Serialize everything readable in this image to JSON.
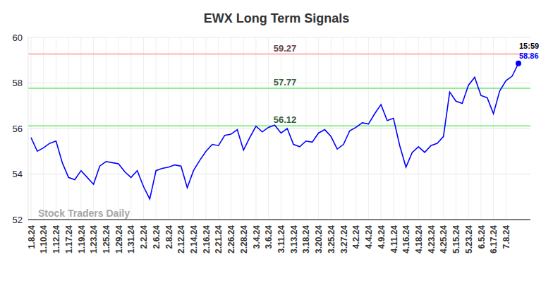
{
  "chart_data": {
    "type": "line",
    "title": "EWX Long Term Signals",
    "watermark": "Stock Traders Daily",
    "annotations": [
      "15:59"
    ],
    "categories": [
      "1.8.24",
      null,
      "1.10.24",
      null,
      "1.12.24",
      null,
      "1.17.24",
      null,
      "1.19.24",
      null,
      "1.23.24",
      null,
      "1.25.24",
      null,
      "1.29.24",
      null,
      "1.31.24",
      null,
      "2.2.24",
      null,
      "2.6.24",
      null,
      "2.8.24",
      null,
      "2.12.24",
      null,
      "2.14.24",
      null,
      "2.16.24",
      null,
      "2.21.24",
      null,
      "2.26.24",
      null,
      "2.28.24",
      null,
      "3.4.24",
      null,
      "3.6.24",
      null,
      "3.11.24",
      null,
      "3.13.24",
      null,
      "3.18.24",
      null,
      "3.20.24",
      null,
      "3.25.24",
      null,
      "3.27.24",
      null,
      "4.2.24",
      null,
      "4.4.24",
      null,
      "4.9.24",
      null,
      "4.11.24",
      null,
      "4.16.24",
      null,
      "4.18.24",
      null,
      "4.23.24",
      null,
      "4.25.24",
      null,
      "5.15.24",
      null,
      "5.23.24",
      null,
      "6.5.24",
      null,
      "6.17.24",
      null,
      "7.8.24",
      null,
      null
    ],
    "series": [
      {
        "name": "EWX",
        "color": "#0000ff",
        "values": [
          55.6,
          55.0,
          55.15,
          55.35,
          55.45,
          54.5,
          53.85,
          53.75,
          54.15,
          53.85,
          53.55,
          54.35,
          54.55,
          54.5,
          54.45,
          54.1,
          53.85,
          54.15,
          53.45,
          52.9,
          54.15,
          54.25,
          54.3,
          54.4,
          54.35,
          53.4,
          54.15,
          54.6,
          55.0,
          55.3,
          55.25,
          55.7,
          55.75,
          55.95,
          55.05,
          55.6,
          56.1,
          55.85,
          56.05,
          56.15,
          55.8,
          56.0,
          55.3,
          55.2,
          55.45,
          55.4,
          55.8,
          55.95,
          55.65,
          55.1,
          55.3,
          55.9,
          56.05,
          56.25,
          56.2,
          56.65,
          57.05,
          56.35,
          56.45,
          55.25,
          54.3,
          54.95,
          55.2,
          54.95,
          55.25,
          55.35,
          55.65,
          57.6,
          57.2,
          57.1,
          57.9,
          58.25,
          57.45,
          57.35,
          56.65,
          57.65,
          58.1,
          58.3,
          58.86
        ]
      }
    ],
    "reference_lines": [
      {
        "value": 59.27,
        "color": "#ffb3b3"
      },
      {
        "value": 57.77,
        "color": "#90ee90"
      },
      {
        "value": 56.12,
        "color": "#90ee90"
      }
    ],
    "ylim": [
      52,
      60
    ],
    "yticks": [
      52,
      54,
      56,
      58,
      60
    ],
    "grid": true
  }
}
